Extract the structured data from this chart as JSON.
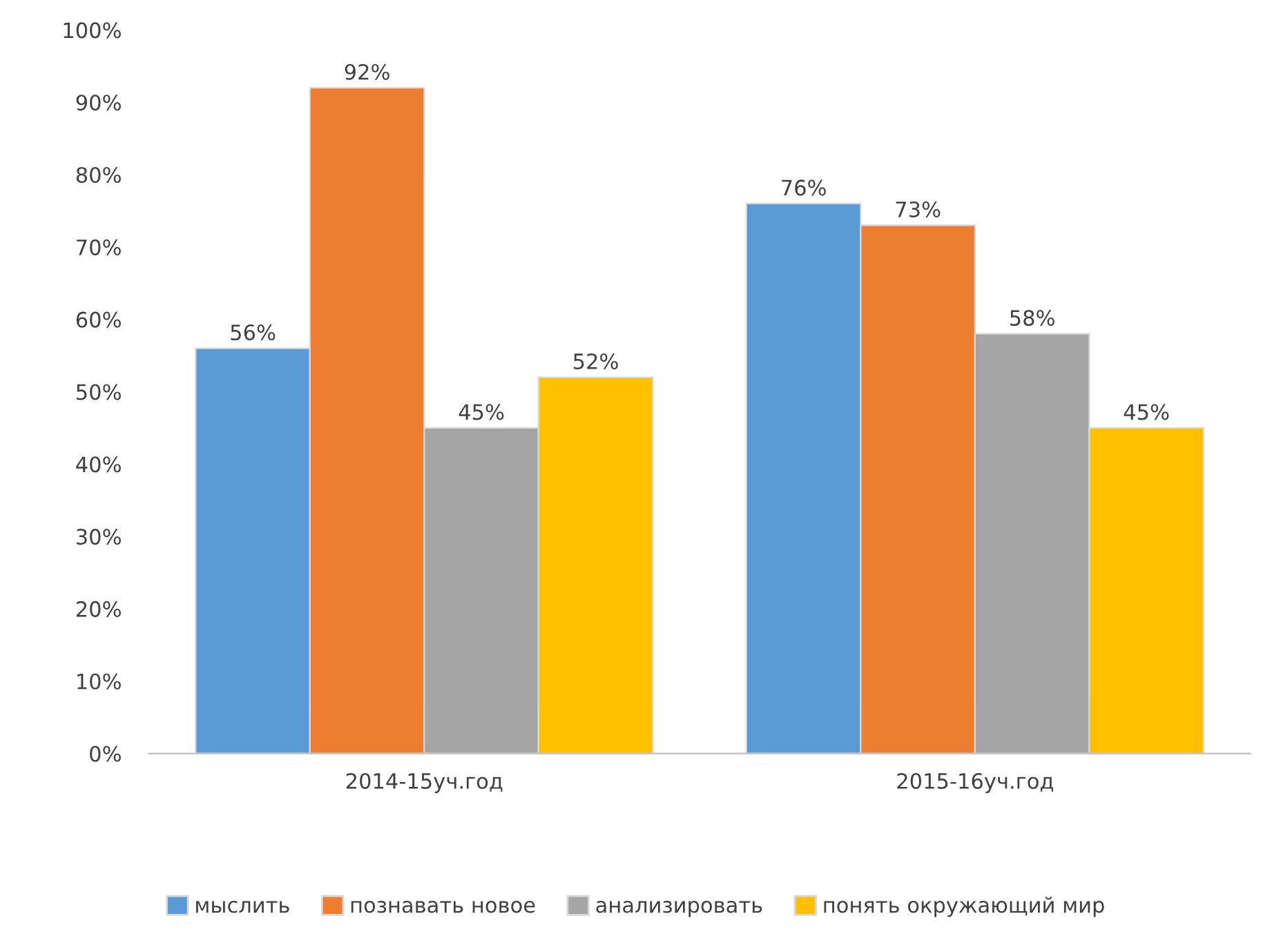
{
  "chart_data": {
    "type": "bar",
    "categories": [
      "2014-15уч.год",
      "2015-16уч.год"
    ],
    "series": [
      {
        "name": "мыслить",
        "color": "#5b9bd5",
        "values": [
          56,
          76
        ],
        "value_labels": [
          "56%",
          "76%"
        ]
      },
      {
        "name": "познавать новое",
        "color": "#ed7d31",
        "values": [
          92,
          73
        ],
        "value_labels": [
          "92%",
          "73%"
        ]
      },
      {
        "name": "анализировать",
        "color": "#a5a5a5",
        "values": [
          45,
          58
        ],
        "value_labels": [
          "45%",
          "58%"
        ]
      },
      {
        "name": "понять окружающий мир",
        "color": "#ffc000",
        "values": [
          52,
          45
        ],
        "value_labels": [
          "52%",
          "45%"
        ]
      }
    ],
    "ylim": [
      0,
      100
    ],
    "yticks": [
      {
        "value": 0,
        "label": "0%"
      },
      {
        "value": 10,
        "label": "10%"
      },
      {
        "value": 20,
        "label": "20%"
      },
      {
        "value": 30,
        "label": "30%"
      },
      {
        "value": 40,
        "label": "40%"
      },
      {
        "value": 50,
        "label": "50%"
      },
      {
        "value": 60,
        "label": "60%"
      },
      {
        "value": 70,
        "label": "70%"
      },
      {
        "value": 80,
        "label": "80%"
      },
      {
        "value": 90,
        "label": "90%"
      },
      {
        "value": 100,
        "label": "100%"
      }
    ],
    "grid": false,
    "legend": "bottom"
  }
}
